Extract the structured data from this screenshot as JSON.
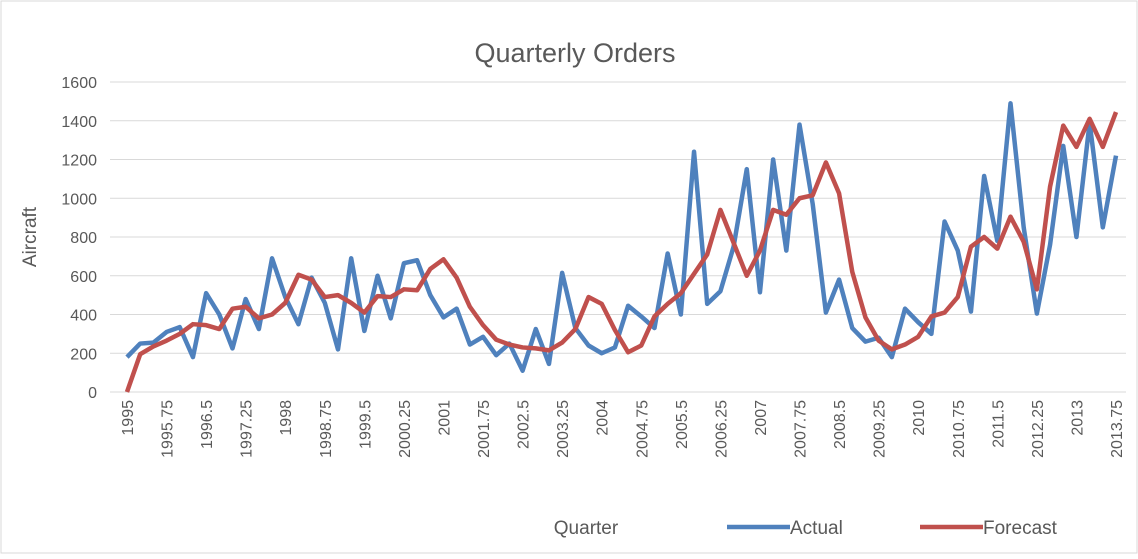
{
  "chart_data": {
    "type": "line",
    "title": "Quarterly Orders",
    "x_label": "Quarter",
    "y_label": "Aircraft",
    "categories": [
      "1995",
      null,
      null,
      "1995.75",
      null,
      null,
      "1996.5",
      null,
      null,
      "1997.25",
      null,
      null,
      "1998",
      null,
      null,
      "1998.75",
      null,
      null,
      "1999.5",
      null,
      null,
      "2000.25",
      null,
      null,
      "2001",
      null,
      null,
      "2001.75",
      null,
      null,
      "2002.5",
      null,
      null,
      "2003.25",
      null,
      null,
      "2004",
      null,
      null,
      "2004.75",
      null,
      null,
      "2005.5",
      null,
      null,
      "2006.25",
      null,
      null,
      "2007",
      null,
      null,
      "2007.75",
      null,
      null,
      "2008.5",
      null,
      null,
      "2009.25",
      null,
      null,
      "2010",
      null,
      null,
      "2010.75",
      null,
      null,
      "2011.5",
      null,
      null,
      "2012.25",
      null,
      null,
      "2013",
      null,
      null,
      "2013.75"
    ],
    "series": [
      {
        "name": "Actual",
        "color": "#4f81bd",
        "values": [
          180,
          250,
          255,
          310,
          335,
          180,
          510,
          400,
          225,
          480,
          325,
          690,
          490,
          350,
          590,
          460,
          220,
          690,
          315,
          600,
          380,
          665,
          680,
          500,
          385,
          430,
          245,
          285,
          190,
          250,
          110,
          325,
          145,
          615,
          330,
          240,
          200,
          230,
          445,
          390,
          330,
          715,
          400,
          1240,
          455,
          520,
          750,
          1150,
          515,
          1200,
          730,
          1380,
          970,
          410,
          580,
          330,
          260,
          280,
          180,
          430,
          360,
          300,
          880,
          730,
          415,
          1115,
          780,
          1490,
          850,
          405,
          760,
          1270,
          800,
          1390,
          850,
          1220
        ]
      },
      {
        "name": "Forecast",
        "color": "#c0504d",
        "values": [
          0,
          195,
          235,
          265,
          300,
          350,
          345,
          325,
          430,
          440,
          380,
          400,
          460,
          605,
          580,
          490,
          500,
          460,
          410,
          495,
          490,
          530,
          525,
          635,
          685,
          590,
          440,
          345,
          270,
          245,
          230,
          225,
          215,
          255,
          325,
          490,
          455,
          320,
          205,
          240,
          390,
          455,
          510,
          610,
          710,
          940,
          770,
          600,
          730,
          940,
          915,
          1000,
          1015,
          1185,
          1025,
          620,
          385,
          265,
          220,
          245,
          285,
          390,
          410,
          490,
          750,
          800,
          740,
          905,
          775,
          530,
          1060,
          1375,
          1265,
          1410,
          1265,
          1445
        ]
      }
    ],
    "ylim": [
      0,
      1600
    ],
    "yticks": [
      0,
      200,
      400,
      600,
      800,
      1000,
      1200,
      1400,
      1600
    ],
    "grid": true,
    "legend": "bottom"
  }
}
